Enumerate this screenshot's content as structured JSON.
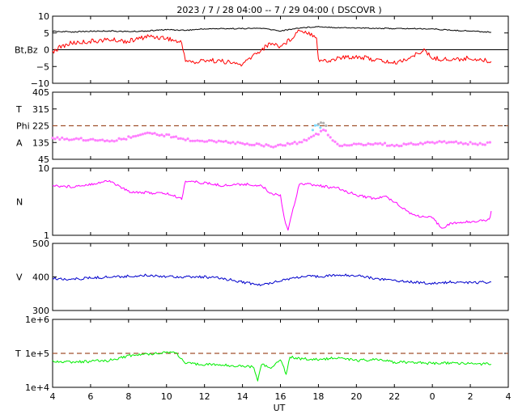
{
  "chart_data": {
    "type": "line",
    "title": "2023 /  7 / 28  04:00 --  7 / 29  04:00 ( DSCOVR )",
    "xlabel": "UT",
    "x_ticks": [
      "4",
      "6",
      "8",
      "10",
      "12",
      "14",
      "16",
      "18",
      "20",
      "22",
      "0",
      "2",
      "4"
    ],
    "x_range": [
      4,
      28
    ],
    "data_end_hour": 27.1,
    "panels": [
      {
        "id": "bt-bz",
        "ylabel": "Bt,Bz",
        "scale": "linear",
        "ylim": [
          -10,
          10
        ],
        "ytick_labels": [
          "10",
          "5",
          "0",
          "−5",
          "−10"
        ],
        "ytick_values": [
          10,
          5,
          0,
          -5,
          -10
        ],
        "zero_line": true,
        "series": [
          {
            "color": "#000000",
            "x": [
              4,
              5,
              6,
              7,
              8,
              9,
              10,
              11,
              12,
              13,
              14,
              15,
              16,
              17,
              18,
              19,
              20,
              21,
              22,
              23,
              24,
              25,
              26,
              27.1
            ],
            "y": [
              5.5,
              5.3,
              5.5,
              5.6,
              5.4,
              5.6,
              6.0,
              5.8,
              6.2,
              6.3,
              6.3,
              6.4,
              5.6,
              6.5,
              6.9,
              6.6,
              6.5,
              6.4,
              6.3,
              6.3,
              6.2,
              5.8,
              5.6,
              5.2
            ]
          },
          {
            "color": "#ff0000",
            "x": [
              4,
              4.5,
              5,
              6,
              7,
              8,
              9,
              10,
              10.8,
              11,
              11.5,
              12,
              13,
              14,
              14.5,
              15,
              15.5,
              16,
              16.5,
              17,
              17.5,
              17.9,
              18,
              18.5,
              19,
              20,
              21,
              22,
              23,
              23.5,
              24,
              25,
              26,
              27.1
            ],
            "y": [
              -0.5,
              1,
              2,
              2.5,
              3,
              2.5,
              4,
              3.5,
              2,
              -3,
              -4,
              -3,
              -3.5,
              -4.5,
              -2,
              0,
              2,
              1,
              3,
              6,
              5,
              4,
              -3,
              -3.5,
              -2.5,
              -2,
              -3,
              -4,
              -2,
              0,
              -2.5,
              -3,
              -2.5,
              -3.5
            ]
          }
        ]
      },
      {
        "id": "phi",
        "ylabel_lines": [
          "T",
          "Phi",
          "A"
        ],
        "scale": "linear",
        "ylim": [
          45,
          405
        ],
        "ytick_labels": [
          "405",
          "315",
          "225",
          "135",
          "45"
        ],
        "ytick_values": [
          405,
          315,
          225,
          135,
          45
        ],
        "ref_line": 225,
        "series": [
          {
            "color": "#ff80ff",
            "x": [
              4,
              5,
              6,
              7,
              8,
              9,
              10,
              11,
              12,
              13,
              14,
              15,
              15.5,
              16,
              17,
              18,
              18.2,
              19,
              20,
              21,
              22,
              23,
              24,
              25,
              26,
              27.1
            ],
            "y": [
              160,
              155,
              150,
              145,
              160,
              185,
              175,
              150,
              145,
              140,
              130,
              125,
              110,
              120,
              135,
              180,
              215,
              120,
              125,
              130,
              120,
              130,
              135,
              135,
              130,
              130
            ]
          },
          {
            "color": "#7fdcff",
            "x": [
              17.7,
              17.9,
              18.1
            ],
            "y": [
              200,
              240,
              215
            ]
          },
          {
            "color": "#b0b0b0",
            "x": [
              18.0,
              18.2,
              18.4
            ],
            "y": [
              230,
              250,
              225
            ]
          }
        ]
      },
      {
        "id": "density",
        "ylabel": "N",
        "scale": "log",
        "ylim": [
          1,
          10
        ],
        "ytick_labels": [
          "10",
          "1"
        ],
        "ytick_values": [
          10,
          1
        ],
        "series": [
          {
            "color": "#ff00ff",
            "x": [
              4,
              5,
              6,
              7,
              8,
              9,
              10,
              10.8,
              11,
              12,
              13,
              14,
              15,
              15.5,
              16,
              16.2,
              16.4,
              17,
              18,
              19,
              20,
              21,
              21.5,
              22,
              22.5,
              23,
              24,
              24.5,
              25,
              26,
              27,
              27.1
            ],
            "y": [
              5.5,
              5.3,
              5.8,
              6.5,
              4.5,
              4.3,
              4.2,
              3.5,
              6.5,
              6,
              5.5,
              5.8,
              5.5,
              4.2,
              4,
              1.8,
              1.2,
              6,
              5.5,
              5,
              4,
              3.5,
              3.8,
              3.2,
              2.5,
              2,
              1.8,
              1.3,
              1.5,
              1.6,
              1.7,
              2.3
            ]
          }
        ]
      },
      {
        "id": "speed",
        "ylabel": "V",
        "scale": "linear",
        "ylim": [
          300,
          500
        ],
        "ytick_labels": [
          "500",
          "400",
          "300"
        ],
        "ytick_values": [
          500,
          400,
          300
        ],
        "series": [
          {
            "color": "#0000cc",
            "x": [
              4,
              5,
              6,
              7,
              8,
              9,
              10,
              11,
              12,
              13,
              14,
              14.5,
              15,
              15.5,
              16,
              16.5,
              17,
              18,
              19,
              20,
              21,
              22,
              23,
              24,
              25,
              26,
              27.1
            ],
            "y": [
              395,
              393,
              397,
              400,
              402,
              405,
              402,
              400,
              400,
              395,
              385,
              380,
              375,
              383,
              390,
              395,
              400,
              402,
              405,
              405,
              395,
              390,
              385,
              380,
              385,
              383,
              385
            ]
          }
        ]
      },
      {
        "id": "temperature",
        "ylabel": "T",
        "scale": "log",
        "ylim": [
          10000,
          1000000
        ],
        "ytick_labels": [
          "1e+6",
          "1e+5",
          "1e+4"
        ],
        "ytick_values": [
          1000000,
          100000,
          10000
        ],
        "ref_line": 100000,
        "series": [
          {
            "color": "#00ee00",
            "x": [
              4,
              5,
              6,
              7,
              8,
              9,
              10,
              10.5,
              11,
              12,
              13,
              14,
              14.6,
              14.8,
              15,
              15.5,
              16,
              16.3,
              16.5,
              17,
              18,
              19,
              20,
              21,
              22,
              23,
              24,
              25,
              26,
              27.1
            ],
            "y": [
              60000,
              55000,
              58000,
              62000,
              85000,
              95000,
              110000,
              105000,
              50000,
              48000,
              45000,
              42000,
              40000,
              15000,
              50000,
              35000,
              70000,
              25000,
              80000,
              70000,
              65000,
              75000,
              62000,
              65000,
              55000,
              55000,
              50000,
              52000,
              50000,
              48000
            ]
          }
        ]
      }
    ]
  }
}
